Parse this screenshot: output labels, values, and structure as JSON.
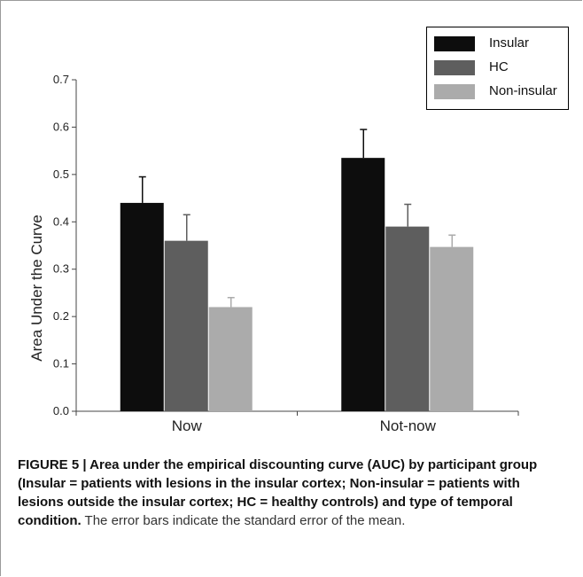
{
  "chart_data": {
    "type": "bar",
    "categories": [
      "Now",
      "Not-now"
    ],
    "series": [
      {
        "name": "Insular",
        "values": [
          0.44,
          0.535
        ],
        "errors": [
          0.055,
          0.06
        ],
        "color": "#0d0d0d"
      },
      {
        "name": "HC",
        "values": [
          0.36,
          0.39
        ],
        "errors": [
          0.055,
          0.047
        ],
        "color": "#5e5e5e"
      },
      {
        "name": "Non-insular",
        "values": [
          0.22,
          0.347
        ],
        "errors": [
          0.02,
          0.025
        ],
        "color": "#ababab"
      }
    ],
    "ylabel": "Area Under the Curve",
    "xlabel": "",
    "ylim": [
      0,
      0.7
    ],
    "yticks": [
      "0.0",
      "0.1",
      "0.2",
      "0.3",
      "0.4",
      "0.5",
      "0.6",
      "0.7"
    ],
    "legend_position": "top-right",
    "grid": false
  },
  "caption": {
    "label": "FIGURE 5 | Area under the empirical discounting curve (AUC) by participant group (Insular = patients with lesions in the insular cortex; Non-insular = patients with lesions outside the insular cortex; HC = healthy controls) and type of temporal condition.",
    "text": " The error bars indicate the standard error of the mean."
  }
}
